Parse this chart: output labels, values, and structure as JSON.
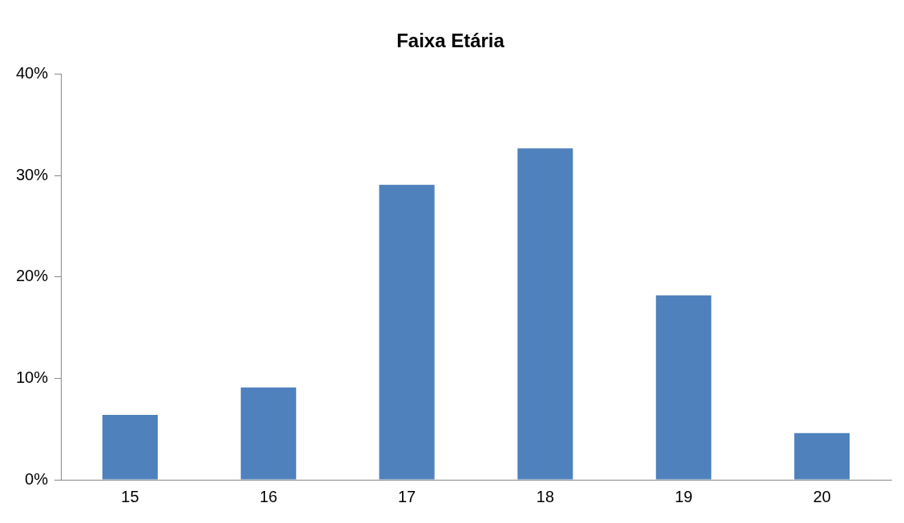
{
  "chart_data": {
    "type": "bar",
    "title": "Faixa Etária",
    "categories": [
      "15",
      "16",
      "17",
      "18",
      "19",
      "20"
    ],
    "values": [
      6.4,
      9.1,
      29.1,
      32.7,
      18.2,
      4.6
    ],
    "color": "#4f81bd",
    "ylim": [
      0,
      40
    ],
    "yticks": [
      {
        "value": 0,
        "label": "0%"
      },
      {
        "value": 10,
        "label": "10%"
      },
      {
        "value": 20,
        "label": "20%"
      },
      {
        "value": 30,
        "label": "30%"
      },
      {
        "value": 40,
        "label": "40%"
      }
    ],
    "legend": false
  }
}
